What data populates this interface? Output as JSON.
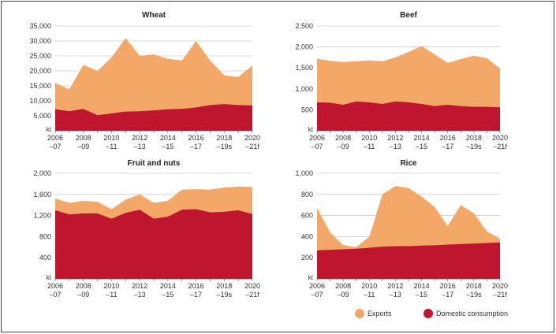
{
  "colors": {
    "exports": "#f3a868",
    "domestic": "#c0152f",
    "grid": "#b8b8b8",
    "text": "#333333"
  },
  "legend": {
    "exports_label": "Exports",
    "domestic_label": "Domestic consumption"
  },
  "chart_data": [
    {
      "type": "area",
      "title": "Wheat",
      "unit_label": "kt",
      "ylim": [
        0,
        35000
      ],
      "yticks": [
        5000,
        10000,
        15000,
        20000,
        25000,
        30000,
        35000
      ],
      "ytick_labels": [
        "5,000",
        "10,000",
        "15,000",
        "20,000",
        "25,000",
        "30,000",
        "35,000"
      ],
      "x": [
        2006,
        2007,
        2008,
        2009,
        2010,
        2011,
        2012,
        2013,
        2014,
        2015,
        2016,
        2017,
        2018,
        2019,
        2020
      ],
      "xtick_labels_top": [
        "2006",
        "2008",
        "2010",
        "2012",
        "2014",
        "2016",
        "2018",
        "2020"
      ],
      "xtick_labels_bottom": [
        "–07",
        "–09",
        "–11",
        "–13",
        "–15",
        "–17",
        "–19s",
        "–21f"
      ],
      "series": [
        {
          "name": "Domestic consumption",
          "values": [
            7200,
            6500,
            7300,
            5200,
            5800,
            6400,
            6500,
            6800,
            7200,
            7300,
            7800,
            8600,
            8900,
            8600,
            8500
          ]
        },
        {
          "name": "Exports",
          "values": [
            16000,
            13800,
            22000,
            20000,
            24500,
            31000,
            25000,
            25500,
            24000,
            23500,
            30000,
            23500,
            18500,
            18000,
            21800
          ]
        }
      ]
    },
    {
      "type": "area",
      "title": "Beef",
      "unit_label": "kt",
      "ylim": [
        0,
        2500
      ],
      "yticks": [
        500,
        1000,
        1500,
        2000,
        2500
      ],
      "ytick_labels": [
        "500",
        "1,000",
        "1,500",
        "2,000",
        "2,500"
      ],
      "x": [
        2006,
        2007,
        2008,
        2009,
        2010,
        2011,
        2012,
        2013,
        2014,
        2015,
        2016,
        2017,
        2018,
        2019,
        2020
      ],
      "xtick_labels_top": [
        "2006",
        "2008",
        "2010",
        "2012",
        "2014",
        "2016",
        "2018",
        "2020"
      ],
      "xtick_labels_bottom": [
        "–07",
        "–09",
        "–11",
        "–13",
        "–15",
        "–17",
        "–19s",
        "–21f"
      ],
      "series": [
        {
          "name": "Domestic consumption",
          "values": [
            680,
            670,
            620,
            700,
            680,
            640,
            700,
            680,
            640,
            590,
            620,
            590,
            570,
            570,
            560
          ]
        },
        {
          "name": "Exports",
          "values": [
            1720,
            1670,
            1640,
            1660,
            1680,
            1660,
            1750,
            1880,
            2020,
            1820,
            1620,
            1710,
            1790,
            1730,
            1480
          ]
        }
      ]
    },
    {
      "type": "area",
      "title": "Fruit and nuts",
      "unit_label": "kt",
      "ylim": [
        0,
        2000
      ],
      "yticks": [
        400,
        800,
        1200,
        1600,
        2000
      ],
      "ytick_labels": [
        "400",
        "800",
        "1,200",
        "1,600",
        "2,000"
      ],
      "x": [
        2006,
        2007,
        2008,
        2009,
        2010,
        2011,
        2012,
        2013,
        2014,
        2015,
        2016,
        2017,
        2018,
        2019,
        2020
      ],
      "xtick_labels_top": [
        "2006",
        "2008",
        "2010",
        "2012",
        "2014",
        "2016",
        "2018",
        "2020"
      ],
      "xtick_labels_bottom": [
        "–07",
        "–09",
        "–11",
        "–13",
        "–15",
        "–17",
        "–19s",
        "–21f"
      ],
      "series": [
        {
          "name": "Domestic consumption",
          "values": [
            1300,
            1220,
            1240,
            1240,
            1140,
            1250,
            1310,
            1140,
            1180,
            1310,
            1320,
            1260,
            1270,
            1300,
            1230
          ]
        },
        {
          "name": "Exports",
          "values": [
            1520,
            1440,
            1480,
            1460,
            1320,
            1500,
            1600,
            1440,
            1480,
            1690,
            1700,
            1690,
            1730,
            1750,
            1740
          ]
        }
      ]
    },
    {
      "type": "area",
      "title": "Rice",
      "unit_label": "kt",
      "ylim": [
        0,
        1000
      ],
      "yticks": [
        200,
        400,
        600,
        800,
        1000
      ],
      "ytick_labels": [
        "200",
        "400",
        "600",
        "800",
        "1,000"
      ],
      "x": [
        2006,
        2007,
        2008,
        2009,
        2010,
        2011,
        2012,
        2013,
        2014,
        2015,
        2016,
        2017,
        2018,
        2019,
        2020
      ],
      "xtick_labels_top": [
        "2006",
        "2008",
        "2010",
        "2012",
        "2014",
        "2016",
        "2018",
        "2020"
      ],
      "xtick_labels_bottom": [
        "–07",
        "–09",
        "–11",
        "–13",
        "–15",
        "–17",
        "–19s",
        "–21f"
      ],
      "series": [
        {
          "name": "Domestic consumption",
          "values": [
            270,
            275,
            280,
            285,
            295,
            305,
            310,
            310,
            315,
            318,
            325,
            330,
            335,
            340,
            345
          ]
        },
        {
          "name": "Exports",
          "values": [
            670,
            440,
            320,
            300,
            400,
            800,
            880,
            860,
            780,
            680,
            500,
            700,
            620,
            450,
            380
          ]
        }
      ]
    }
  ]
}
